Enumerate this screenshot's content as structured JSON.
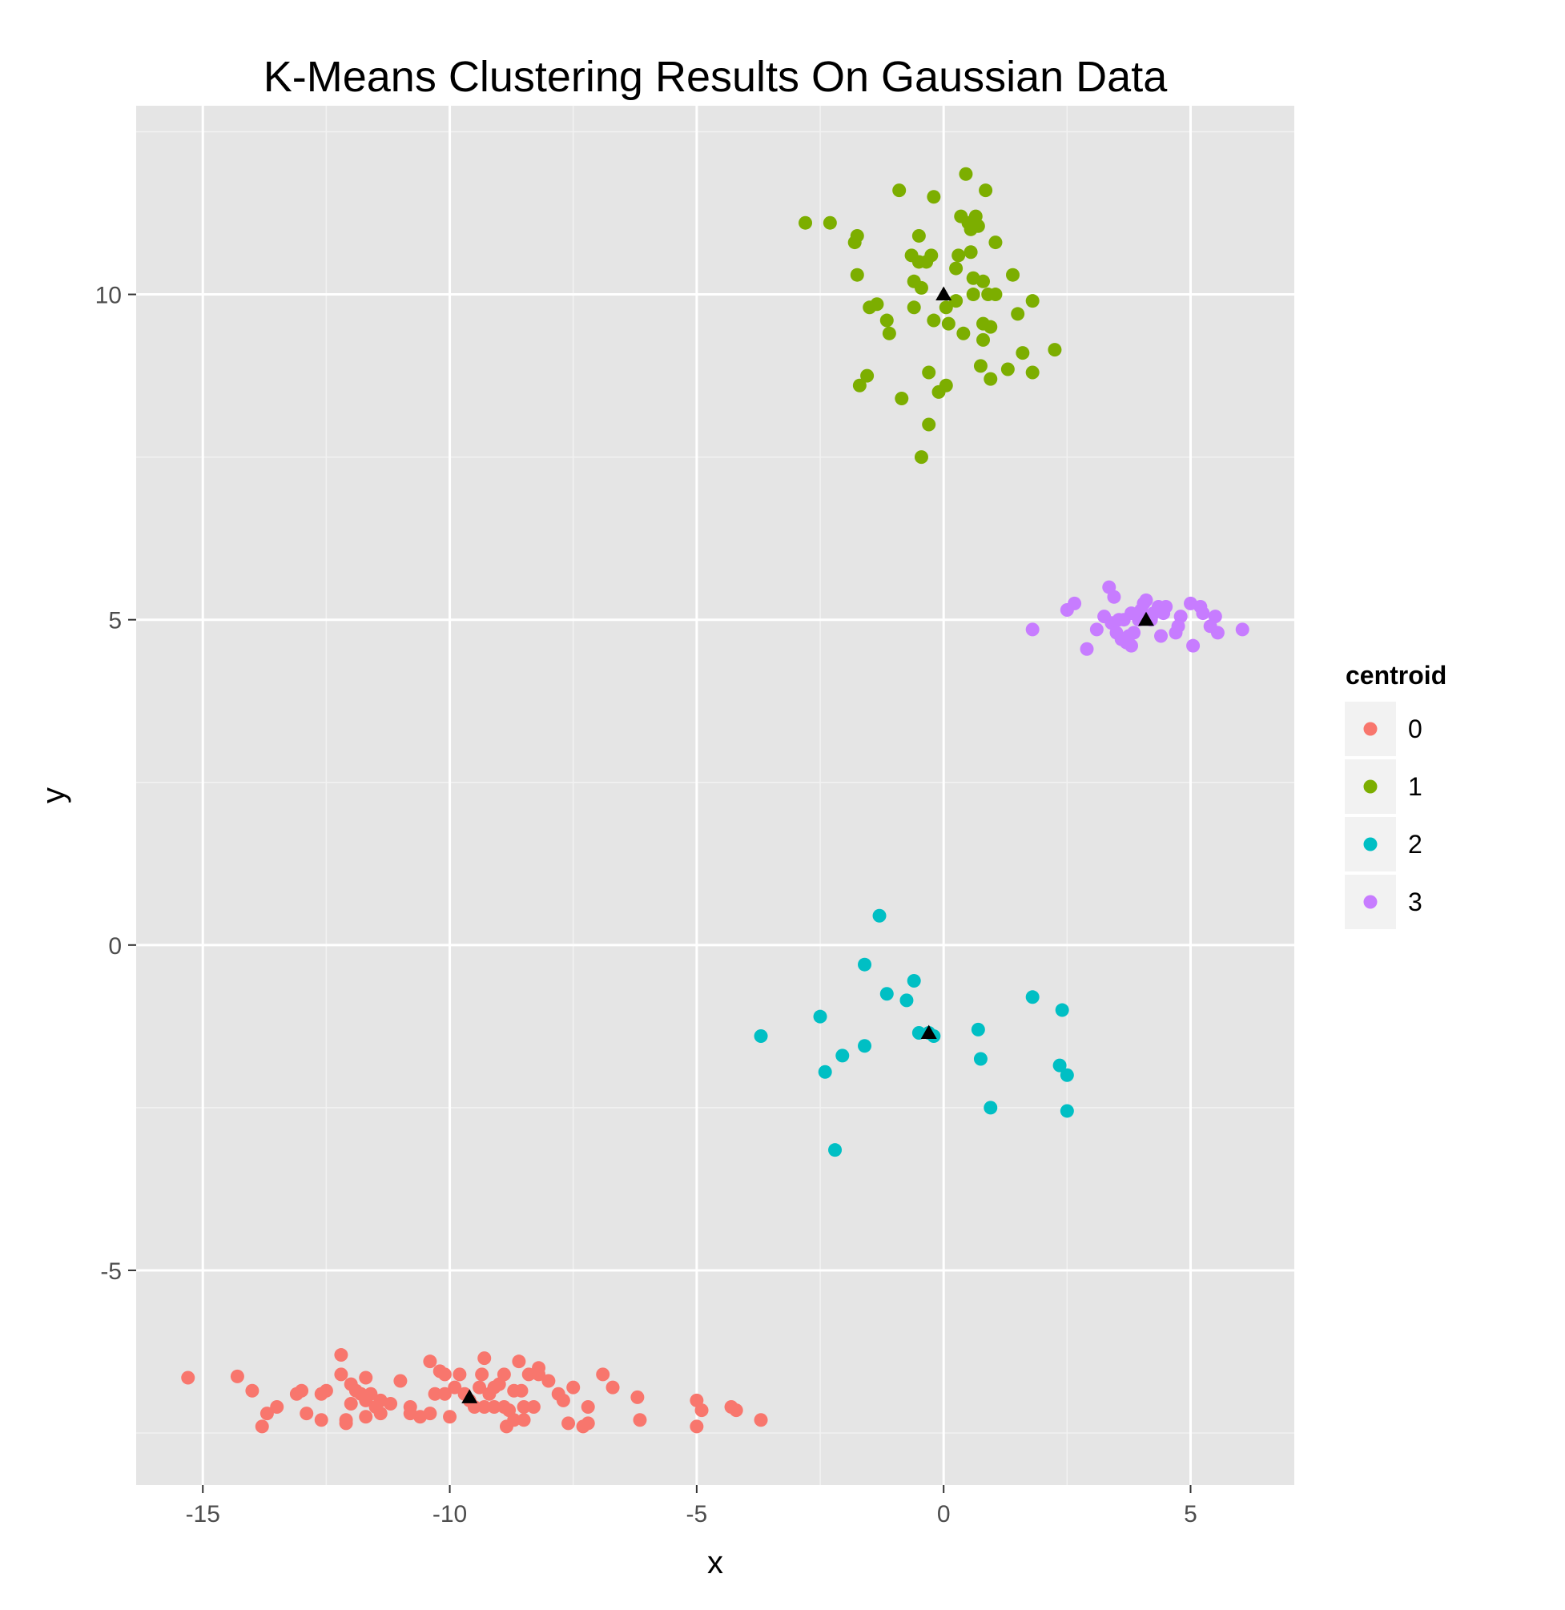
{
  "chart_data": {
    "type": "scatter",
    "title": "K-Means Clustering Results On Gaussian Data",
    "xlabel": "x",
    "ylabel": "y",
    "xlim": [
      -16.35,
      7.1
    ],
    "ylim": [
      -8.3,
      12.9
    ],
    "x_ticks": [
      -15,
      -10,
      -5,
      0,
      5
    ],
    "x_tick_labels": [
      "-15",
      "-10",
      "-5",
      "0",
      "5"
    ],
    "y_ticks": [
      -5,
      0,
      5,
      10
    ],
    "y_tick_labels": [
      "-5",
      "0",
      "5",
      "10"
    ],
    "grid": true,
    "background": "#e5e5e5",
    "legend": {
      "title": "centroid",
      "placement": "right"
    },
    "series": [
      {
        "name": "0",
        "color": "#F8766D",
        "points": [
          [
            -15.3,
            -6.65
          ],
          [
            -14.3,
            -6.63
          ],
          [
            -14.0,
            -6.85
          ],
          [
            -13.8,
            -7.4
          ],
          [
            -13.7,
            -7.2
          ],
          [
            -13.5,
            -7.1
          ],
          [
            -13.1,
            -6.9
          ],
          [
            -13.0,
            -6.85
          ],
          [
            -12.9,
            -7.2
          ],
          [
            -12.6,
            -7.3
          ],
          [
            -12.6,
            -6.9
          ],
          [
            -12.5,
            -6.85
          ],
          [
            -12.2,
            -6.3
          ],
          [
            -12.2,
            -6.6
          ],
          [
            -12.1,
            -7.3
          ],
          [
            -12.1,
            -7.35
          ],
          [
            -12.0,
            -6.75
          ],
          [
            -12.0,
            -7.05
          ],
          [
            -11.9,
            -6.85
          ],
          [
            -11.8,
            -6.9
          ],
          [
            -11.7,
            -6.65
          ],
          [
            -11.7,
            -7.0
          ],
          [
            -11.7,
            -7.25
          ],
          [
            -11.6,
            -6.9
          ],
          [
            -11.5,
            -7.1
          ],
          [
            -11.4,
            -7.0
          ],
          [
            -11.4,
            -7.2
          ],
          [
            -11.2,
            -7.05
          ],
          [
            -11.0,
            -6.7
          ],
          [
            -10.8,
            -7.1
          ],
          [
            -10.8,
            -7.2
          ],
          [
            -10.6,
            -7.25
          ],
          [
            -10.4,
            -6.4
          ],
          [
            -10.4,
            -7.2
          ],
          [
            -10.3,
            -6.9
          ],
          [
            -10.2,
            -6.55
          ],
          [
            -10.1,
            -6.6
          ],
          [
            -10.1,
            -6.9
          ],
          [
            -10.0,
            -7.25
          ],
          [
            -9.9,
            -6.8
          ],
          [
            -9.8,
            -6.6
          ],
          [
            -9.7,
            -6.9
          ],
          [
            -9.6,
            -7.0
          ],
          [
            -9.5,
            -7.1
          ],
          [
            -9.4,
            -6.8
          ],
          [
            -9.35,
            -6.6
          ],
          [
            -9.3,
            -6.35
          ],
          [
            -9.3,
            -7.1
          ],
          [
            -9.2,
            -6.9
          ],
          [
            -9.1,
            -7.1
          ],
          [
            -9.1,
            -6.8
          ],
          [
            -9.0,
            -6.75
          ],
          [
            -8.9,
            -6.6
          ],
          [
            -8.9,
            -7.1
          ],
          [
            -8.85,
            -7.4
          ],
          [
            -8.8,
            -7.15
          ],
          [
            -8.7,
            -6.85
          ],
          [
            -8.7,
            -7.3
          ],
          [
            -8.6,
            -6.4
          ],
          [
            -8.55,
            -6.85
          ],
          [
            -8.5,
            -7.1
          ],
          [
            -8.5,
            -7.3
          ],
          [
            -8.4,
            -6.6
          ],
          [
            -8.3,
            -7.1
          ],
          [
            -8.2,
            -6.6
          ],
          [
            -8.2,
            -6.5
          ],
          [
            -8.0,
            -6.7
          ],
          [
            -7.8,
            -6.9
          ],
          [
            -7.7,
            -7.0
          ],
          [
            -7.6,
            -7.35
          ],
          [
            -7.5,
            -6.8
          ],
          [
            -7.3,
            -7.4
          ],
          [
            -7.2,
            -7.1
          ],
          [
            -7.2,
            -7.35
          ],
          [
            -6.9,
            -6.6
          ],
          [
            -6.7,
            -6.8
          ],
          [
            -6.2,
            -6.95
          ],
          [
            -6.15,
            -7.3
          ],
          [
            -5.0,
            -7.0
          ],
          [
            -5.0,
            -7.4
          ],
          [
            -4.9,
            -7.15
          ],
          [
            -4.3,
            -7.1
          ],
          [
            -4.2,
            -7.15
          ],
          [
            -3.7,
            -7.3
          ]
        ]
      },
      {
        "name": "1",
        "color": "#7CAE00",
        "points": [
          [
            -2.8,
            11.1
          ],
          [
            -2.3,
            11.1
          ],
          [
            -1.8,
            10.8
          ],
          [
            -1.75,
            10.9
          ],
          [
            -1.75,
            10.3
          ],
          [
            -1.7,
            8.6
          ],
          [
            -1.55,
            8.75
          ],
          [
            -1.5,
            9.8
          ],
          [
            -1.35,
            9.85
          ],
          [
            -1.15,
            9.6
          ],
          [
            -1.1,
            9.4
          ],
          [
            -0.9,
            11.6
          ],
          [
            -0.85,
            8.4
          ],
          [
            -0.65,
            10.6
          ],
          [
            -0.6,
            9.8
          ],
          [
            -0.6,
            10.2
          ],
          [
            -0.5,
            10.9
          ],
          [
            -0.5,
            10.5
          ],
          [
            -0.45,
            10.1
          ],
          [
            -0.45,
            7.5
          ],
          [
            -0.35,
            10.5
          ],
          [
            -0.3,
            8.8
          ],
          [
            -0.3,
            8.0
          ],
          [
            -0.25,
            10.6
          ],
          [
            -0.2,
            11.5
          ],
          [
            -0.2,
            9.6
          ],
          [
            -0.1,
            8.5
          ],
          [
            0.05,
            9.8
          ],
          [
            0.05,
            8.6
          ],
          [
            0.1,
            9.55
          ],
          [
            0.25,
            10.4
          ],
          [
            0.25,
            9.9
          ],
          [
            0.3,
            10.6
          ],
          [
            0.35,
            11.2
          ],
          [
            0.4,
            9.4
          ],
          [
            0.45,
            11.85
          ],
          [
            0.5,
            11.1
          ],
          [
            0.55,
            10.65
          ],
          [
            0.55,
            11.0
          ],
          [
            0.6,
            10.0
          ],
          [
            0.6,
            10.25
          ],
          [
            0.65,
            11.2
          ],
          [
            0.7,
            11.05
          ],
          [
            0.75,
            8.9
          ],
          [
            0.8,
            9.3
          ],
          [
            0.8,
            9.55
          ],
          [
            0.8,
            10.2
          ],
          [
            0.85,
            11.6
          ],
          [
            0.9,
            10.0
          ],
          [
            0.95,
            8.7
          ],
          [
            0.95,
            9.5
          ],
          [
            1.05,
            10.0
          ],
          [
            1.05,
            10.8
          ],
          [
            1.3,
            8.85
          ],
          [
            1.4,
            10.3
          ],
          [
            1.5,
            9.7
          ],
          [
            1.6,
            9.1
          ],
          [
            1.8,
            8.8
          ],
          [
            1.8,
            9.9
          ],
          [
            2.25,
            9.15
          ]
        ]
      },
      {
        "name": "2",
        "color": "#00BFC4",
        "points": [
          [
            -1.3,
            0.45
          ],
          [
            -1.6,
            -0.3
          ],
          [
            -0.6,
            -0.55
          ],
          [
            -1.15,
            -0.75
          ],
          [
            -0.75,
            -0.85
          ],
          [
            1.8,
            -0.8
          ],
          [
            2.4,
            -1.0
          ],
          [
            -3.7,
            -1.4
          ],
          [
            -2.5,
            -1.1
          ],
          [
            -0.5,
            -1.35
          ],
          [
            -0.3,
            -1.35
          ],
          [
            -0.2,
            -1.4
          ],
          [
            0.7,
            -1.3
          ],
          [
            -1.6,
            -1.55
          ],
          [
            -2.05,
            -1.7
          ],
          [
            0.75,
            -1.75
          ],
          [
            -2.4,
            -1.95
          ],
          [
            2.35,
            -1.85
          ],
          [
            2.5,
            -2.0
          ],
          [
            0.95,
            -2.5
          ],
          [
            2.5,
            -2.55
          ],
          [
            -2.2,
            -3.15
          ]
        ]
      },
      {
        "name": "3",
        "color": "#C77CFF",
        "points": [
          [
            1.8,
            4.85
          ],
          [
            2.5,
            5.15
          ],
          [
            2.65,
            5.25
          ],
          [
            2.9,
            4.55
          ],
          [
            3.1,
            4.85
          ],
          [
            3.25,
            5.05
          ],
          [
            3.35,
            5.5
          ],
          [
            3.4,
            4.95
          ],
          [
            3.45,
            5.35
          ],
          [
            3.5,
            4.8
          ],
          [
            3.55,
            5.0
          ],
          [
            3.6,
            4.7
          ],
          [
            3.65,
            5.0
          ],
          [
            3.7,
            4.65
          ],
          [
            3.75,
            4.75
          ],
          [
            3.8,
            5.1
          ],
          [
            3.8,
            4.6
          ],
          [
            3.85,
            4.8
          ],
          [
            3.95,
            5.0
          ],
          [
            4.0,
            5.15
          ],
          [
            4.05,
            5.25
          ],
          [
            4.1,
            5.3
          ],
          [
            4.2,
            5.0
          ],
          [
            4.25,
            5.1
          ],
          [
            4.35,
            5.2
          ],
          [
            4.4,
            4.75
          ],
          [
            4.45,
            5.1
          ],
          [
            4.5,
            5.2
          ],
          [
            4.7,
            4.8
          ],
          [
            4.75,
            4.9
          ],
          [
            4.8,
            5.05
          ],
          [
            5.0,
            5.25
          ],
          [
            5.05,
            4.6
          ],
          [
            5.2,
            5.2
          ],
          [
            5.25,
            5.1
          ],
          [
            5.4,
            4.9
          ],
          [
            5.5,
            5.05
          ],
          [
            5.55,
            4.8
          ],
          [
            6.05,
            4.85
          ]
        ]
      }
    ],
    "centroids": [
      {
        "name": "0",
        "x": -9.6,
        "y": -6.95
      },
      {
        "name": "1",
        "x": 0.0,
        "y": 10.0
      },
      {
        "name": "2",
        "x": -0.3,
        "y": -1.35
      },
      {
        "name": "3",
        "x": 4.1,
        "y": 5.0
      }
    ],
    "centroid_marker_color": "#000000"
  }
}
